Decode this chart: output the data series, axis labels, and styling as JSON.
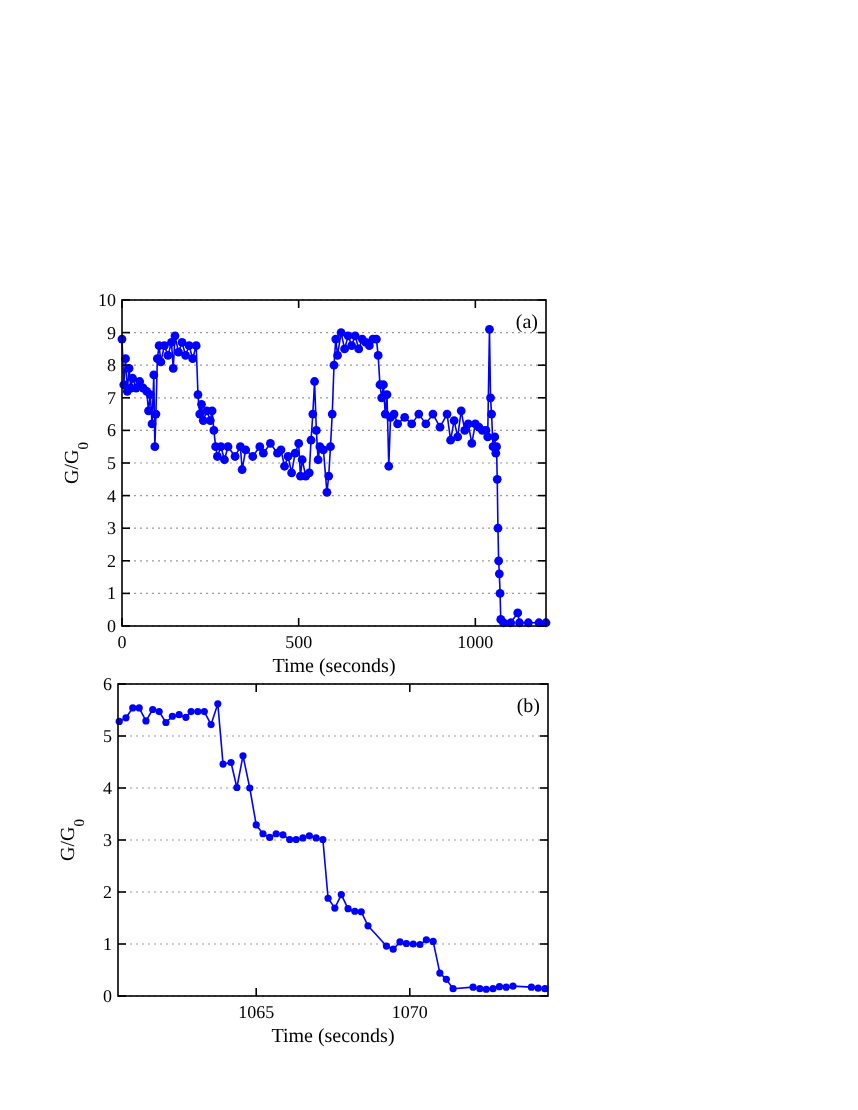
{
  "chart_data": [
    {
      "type": "line",
      "xlabel": "Time (seconds)",
      "ylabel": "G/G$_{0}$",
      "annotations": [
        "(a)"
      ],
      "xlim": [
        0,
        1200
      ],
      "xticks": [
        0,
        500,
        1000
      ],
      "ylim": [
        0,
        10
      ],
      "yticks": [
        0,
        1,
        2,
        3,
        4,
        5,
        6,
        7,
        8,
        9,
        10
      ],
      "grid": "y",
      "marker": "circle",
      "line_style": "solid",
      "series": [
        {
          "color": "#0000ff",
          "x": [
            0,
            5,
            10,
            15,
            20,
            25,
            30,
            40,
            50,
            60,
            70,
            75,
            80,
            85,
            90,
            93,
            96,
            100,
            105,
            110,
            120,
            130,
            140,
            145,
            150,
            160,
            170,
            180,
            190,
            200,
            210,
            215,
            220,
            225,
            230,
            240,
            250,
            255,
            260,
            265,
            270,
            280,
            290,
            300,
            320,
            335,
            340,
            350,
            370,
            390,
            400,
            420,
            440,
            450,
            460,
            470,
            480,
            490,
            500,
            505,
            510,
            520,
            530,
            535,
            540,
            545,
            550,
            555,
            560,
            570,
            580,
            585,
            590,
            595,
            600,
            605,
            610,
            620,
            630,
            640,
            650,
            660,
            670,
            680,
            690,
            700,
            710,
            720,
            725,
            730,
            735,
            740,
            745,
            750,
            755,
            760,
            770,
            780,
            800,
            820,
            840,
            860,
            880,
            900,
            920,
            930,
            940,
            950,
            960,
            970,
            980,
            990,
            1000,
            1010,
            1020,
            1030,
            1035,
            1040,
            1043,
            1046,
            1050,
            1055,
            1058,
            1060,
            1062,
            1064,
            1066,
            1068,
            1070,
            1072,
            1080,
            1100,
            1120,
            1125,
            1150,
            1180,
            1200
          ],
          "values": [
            8.8,
            7.4,
            8.2,
            7.2,
            7.9,
            7.3,
            7.6,
            7.3,
            7.5,
            7.3,
            7.2,
            6.6,
            7.1,
            6.2,
            7.7,
            5.5,
            6.5,
            8.2,
            8.6,
            8.1,
            8.6,
            8.3,
            8.7,
            7.9,
            8.9,
            8.4,
            8.7,
            8.3,
            8.6,
            8.2,
            8.6,
            7.1,
            6.5,
            6.8,
            6.3,
            6.6,
            6.3,
            6.6,
            6.0,
            5.5,
            5.2,
            5.5,
            5.1,
            5.5,
            5.2,
            5.5,
            4.8,
            5.4,
            5.2,
            5.5,
            5.3,
            5.6,
            5.3,
            5.4,
            4.9,
            5.2,
            4.7,
            5.3,
            5.6,
            4.6,
            5.1,
            4.6,
            4.7,
            5.7,
            6.5,
            7.5,
            6.0,
            5.1,
            5.5,
            5.4,
            4.1,
            4.6,
            5.5,
            6.5,
            8.0,
            8.8,
            8.3,
            9.0,
            8.5,
            8.9,
            8.6,
            8.9,
            8.5,
            8.8,
            8.7,
            8.6,
            8.8,
            8.8,
            8.3,
            7.4,
            7.0,
            7.4,
            6.5,
            7.1,
            4.9,
            6.4,
            6.5,
            6.2,
            6.4,
            6.2,
            6.5,
            6.2,
            6.5,
            6.1,
            6.5,
            5.7,
            6.3,
            5.8,
            6.6,
            6.0,
            6.2,
            5.6,
            6.2,
            6.1,
            6.0,
            6.0,
            5.8,
            9.1,
            7.0,
            6.5,
            5.5,
            5.8,
            5.3,
            5.5,
            4.5,
            3.0,
            2.0,
            1.6,
            1.0,
            0.2,
            0.1,
            0.1,
            0.4,
            0.1,
            0.1,
            0.1,
            0.1
          ]
        }
      ]
    },
    {
      "type": "line",
      "xlabel": "Time (seconds)",
      "ylabel": "G/G$_{0}$",
      "annotations": [
        "(b)"
      ],
      "xlim": [
        1060.5,
        1074.5
      ],
      "xticks": [
        1065,
        1070
      ],
      "ylim": [
        0,
        6
      ],
      "yticks": [
        0,
        1,
        2,
        3,
        4,
        5,
        6
      ],
      "grid": "y",
      "marker": "circle",
      "line_style": "solid",
      "series": [
        {
          "color": "#0000ff",
          "x": [
            1060.54,
            1060.76,
            1060.98,
            1061.19,
            1061.41,
            1061.63,
            1061.84,
            1062.06,
            1062.27,
            1062.49,
            1062.71,
            1062.88,
            1063.1,
            1063.31,
            1063.53,
            1063.75,
            1063.92,
            1064.18,
            1064.37,
            1064.57,
            1064.79,
            1065.0,
            1065.22,
            1065.44,
            1065.65,
            1065.87,
            1066.09,
            1066.3,
            1066.52,
            1066.73,
            1066.95,
            1067.17,
            1067.34,
            1067.56,
            1067.77,
            1067.99,
            1068.21,
            1068.42,
            1068.64,
            1069.24,
            1069.46,
            1069.68,
            1069.89,
            1070.11,
            1070.33,
            1070.54,
            1070.76,
            1070.98,
            1071.19,
            1071.41,
            1072.06,
            1072.28,
            1072.49,
            1072.71,
            1072.92,
            1073.14,
            1073.36,
            1073.96,
            1074.18,
            1074.4
          ],
          "values": [
            5.28,
            5.35,
            5.54,
            5.54,
            5.29,
            5.51,
            5.47,
            5.26,
            5.38,
            5.41,
            5.36,
            5.47,
            5.47,
            5.47,
            5.22,
            5.62,
            4.46,
            4.49,
            4.01,
            4.62,
            4.0,
            3.29,
            3.12,
            3.05,
            3.12,
            3.1,
            3.01,
            3.01,
            3.04,
            3.08,
            3.04,
            3.01,
            1.88,
            1.69,
            1.95,
            1.68,
            1.63,
            1.62,
            1.35,
            0.96,
            0.9,
            1.04,
            1.01,
            1.0,
            0.99,
            1.08,
            1.05,
            0.44,
            0.32,
            0.14,
            0.17,
            0.14,
            0.13,
            0.14,
            0.18,
            0.17,
            0.19,
            0.17,
            0.15,
            0.14
          ]
        }
      ]
    }
  ]
}
